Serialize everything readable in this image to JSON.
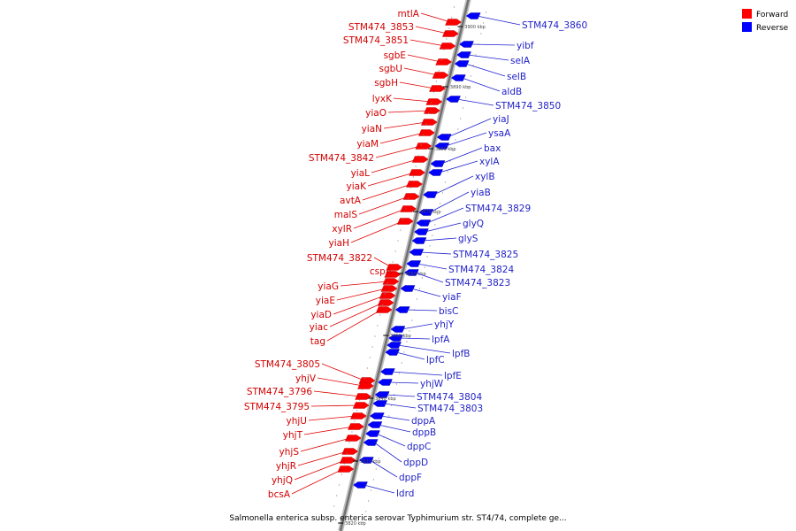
{
  "legend": {
    "forward_label": "Forward",
    "reverse_label": "Reverse",
    "forward_color": "#ff0000",
    "reverse_color": "#0000ff"
  },
  "caption": "Salmonella enterica subsp. enterica serovar Typhimurium str. ST4/74, complete ge...",
  "ticks": [
    "3900 kbp",
    "3890 kbp",
    "3880 kbp",
    "3870 kbp",
    "3860 kbp",
    "3850 kbp",
    "3840 kbp",
    "3830 kbp",
    "3820 kbp"
  ],
  "forward_genes": [
    "mtlA",
    "STM474_3853",
    "STM474_3851",
    "sgbE",
    "sgbU",
    "sgbH",
    "lyxK",
    "yiaO",
    "yiaN",
    "yiaM",
    "STM474_3842",
    "yiaL",
    "yiaK",
    "avtA",
    "malS",
    "xylR",
    "yiaH",
    "STM474_3822",
    "cspA",
    "yiaG",
    "yiaE",
    "yiaD",
    "yiac",
    "tag",
    "STM474_3805",
    "yhjV",
    "STM474_3796",
    "STM474_3795",
    "yhjU",
    "yhjT",
    "yhjS",
    "yhjR",
    "yhjQ",
    "bcsA"
  ],
  "reverse_genes": [
    "STM474_3860",
    "yibf",
    "selA",
    "selB",
    "aldB",
    "STM474_3850",
    "yiaJ",
    "ysaA",
    "bax",
    "xylA",
    "xylB",
    "yiaB",
    "STM474_3829",
    "glyQ",
    "glyS",
    "STM474_3825",
    "STM474_3824",
    "STM474_3823",
    "yiaF",
    "bisC",
    "yhjY",
    "lpfA",
    "lpfB",
    "lpfC",
    "lpfE",
    "yhjW",
    "STM474_3804",
    "STM474_3803",
    "dppA",
    "dppB",
    "dppC",
    "dppD",
    "dppF",
    "ldrd"
  ]
}
